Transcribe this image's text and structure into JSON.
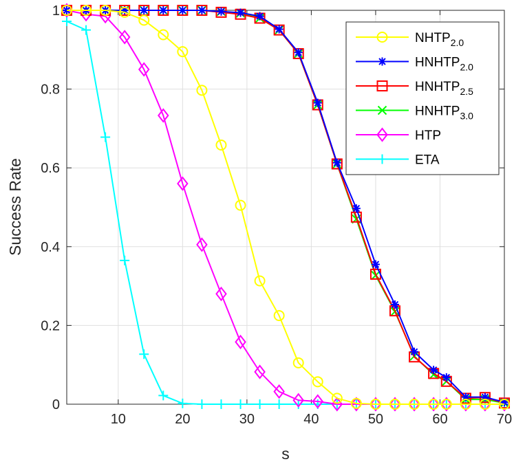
{
  "chart_data": {
    "type": "line",
    "title": "",
    "xlabel": "s",
    "ylabel": "Success Rate",
    "xlim": [
      2,
      70
    ],
    "ylim": [
      0,
      1
    ],
    "xticks": [
      "10",
      "20",
      "30",
      "40",
      "50",
      "60",
      "70"
    ],
    "yticks": [
      "0",
      "0.2",
      "0.4",
      "0.6",
      "0.8",
      "1"
    ],
    "grid": true,
    "legend_position": "top-right",
    "x": [
      2,
      5,
      8,
      11,
      14,
      17,
      20,
      23,
      26,
      29,
      32,
      35,
      38,
      41,
      44,
      47,
      50,
      53,
      56,
      59,
      61,
      64,
      67,
      70
    ],
    "series": [
      {
        "name": "NHTP",
        "sub": "2.0",
        "color": "#ffff00",
        "marker": "circle",
        "values": [
          1,
          1,
          1,
          0.995,
          0.975,
          0.938,
          0.895,
          0.797,
          0.658,
          0.505,
          0.313,
          0.225,
          0.105,
          0.057,
          0.015,
          0.002,
          0,
          0,
          0,
          0,
          0,
          0,
          0,
          0
        ]
      },
      {
        "name": "HNHTP",
        "sub": "2.0",
        "color": "#0000ff",
        "marker": "asterisk",
        "values": [
          1,
          1,
          1,
          1,
          1,
          1,
          1,
          1,
          0.997,
          0.994,
          0.985,
          0.952,
          0.893,
          0.765,
          0.613,
          0.497,
          0.355,
          0.253,
          0.133,
          0.087,
          0.068,
          0.018,
          0.018,
          0.005
        ]
      },
      {
        "name": "HNHTP",
        "sub": "2.5",
        "color": "#ff0000",
        "marker": "square",
        "values": [
          1,
          1,
          1,
          1,
          1,
          1,
          1,
          1,
          0.995,
          0.99,
          0.98,
          0.95,
          0.89,
          0.76,
          0.61,
          0.475,
          0.33,
          0.237,
          0.12,
          0.078,
          0.058,
          0.015,
          0.017,
          0.003
        ]
      },
      {
        "name": "HNHTP",
        "sub": "3.0",
        "color": "#00ff00",
        "marker": "x",
        "values": [
          1,
          1,
          1,
          1,
          1,
          1,
          1,
          1,
          0.997,
          0.993,
          0.98,
          0.95,
          0.89,
          0.76,
          0.61,
          0.47,
          0.327,
          0.235,
          0.122,
          0.075,
          0.058,
          0.012,
          0.012,
          0.003
        ]
      },
      {
        "name": "HTP",
        "sub": "",
        "color": "#ff00ff",
        "marker": "diamond",
        "values": [
          1,
          0.99,
          0.985,
          0.932,
          0.85,
          0.733,
          0.56,
          0.405,
          0.28,
          0.158,
          0.082,
          0.032,
          0.01,
          0.007,
          0,
          0,
          0,
          0,
          0,
          0,
          0,
          0,
          0,
          0
        ]
      },
      {
        "name": "ETA",
        "sub": "",
        "color": "#00ffff",
        "marker": "plus",
        "values": [
          0.972,
          0.95,
          0.678,
          0.365,
          0.127,
          0.022,
          0.002,
          0,
          0,
          0,
          0,
          0,
          0,
          0,
          0,
          0,
          0,
          0,
          0,
          0,
          0,
          0,
          0,
          0
        ]
      }
    ]
  }
}
